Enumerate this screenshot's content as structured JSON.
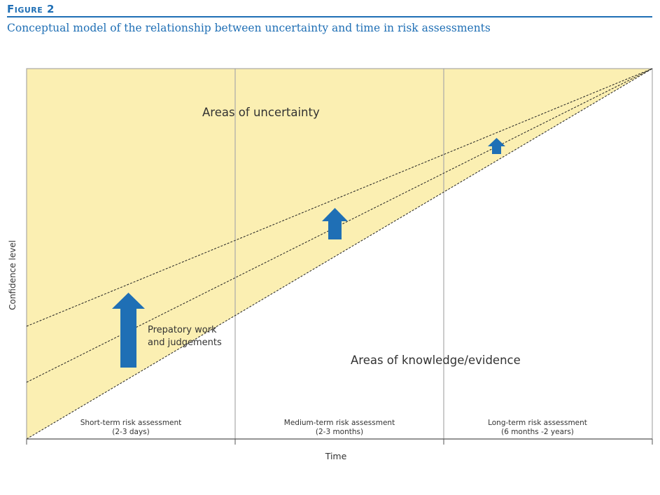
{
  "figure": {
    "label": "Figure 2",
    "title": "Conceptual model of the relationship between uncertainty and time in risk assessments"
  },
  "axes": {
    "y_label": "Confidence level",
    "x_label": "Time"
  },
  "regions": {
    "uncertainty_label": "Areas of uncertainty",
    "knowledge_label": "Areas of knowledge/evidence",
    "prep_line1": "Prepatory work",
    "prep_line2": "and judgements"
  },
  "phases": [
    {
      "name": "Short-term risk assessment",
      "duration": "(2-3 days)"
    },
    {
      "name": "Medium-term risk assessment",
      "duration": "(2-3 months)"
    },
    {
      "name": "Long-term risk assessment",
      "duration": "(6 months -2 years)"
    }
  ],
  "colors": {
    "uncertainty_fill": "#fbefb2",
    "arrow": "#1f6fb5",
    "accent": "#1f6fb5"
  }
}
